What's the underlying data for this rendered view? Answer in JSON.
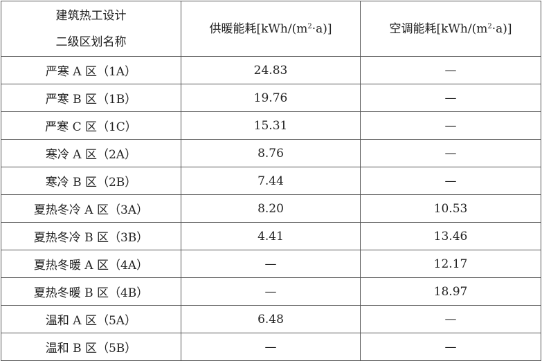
{
  "table": {
    "headers": {
      "zone_line1": "建筑热工设计",
      "zone_line2": "二级区划名称",
      "heating_prefix": "供暖能耗[kWh/(m",
      "heating_sup": "2",
      "heating_suffix": "·a)]",
      "cooling_prefix": "空调能耗[kWh/(m",
      "cooling_sup": "2",
      "cooling_suffix": "·a)]"
    },
    "rows": [
      {
        "zone": "严寒 A 区（1A）",
        "heating": "24.83",
        "cooling": "—"
      },
      {
        "zone": "严寒 B 区（1B）",
        "heating": "19.76",
        "cooling": "—"
      },
      {
        "zone": "严寒 C 区（1C）",
        "heating": "15.31",
        "cooling": "—"
      },
      {
        "zone": "寒冷 A 区（2A）",
        "heating": "8.76",
        "cooling": "—"
      },
      {
        "zone": "寒冷 B 区（2B）",
        "heating": "7.44",
        "cooling": "—"
      },
      {
        "zone": "夏热冬冷 A 区（3A）",
        "heating": "8.20",
        "cooling": "10.53"
      },
      {
        "zone": "夏热冬冷 B 区（3B）",
        "heating": "4.41",
        "cooling": "13.46"
      },
      {
        "zone": "夏热冬暖 A 区（4A）",
        "heating": "—",
        "cooling": "12.17"
      },
      {
        "zone": "夏热冬暖 B 区（4B）",
        "heating": "—",
        "cooling": "18.97"
      },
      {
        "zone": "温和 A 区（5A）",
        "heating": "6.48",
        "cooling": "—"
      },
      {
        "zone": "温和 B 区（5B）",
        "heating": "—",
        "cooling": "—"
      }
    ]
  }
}
